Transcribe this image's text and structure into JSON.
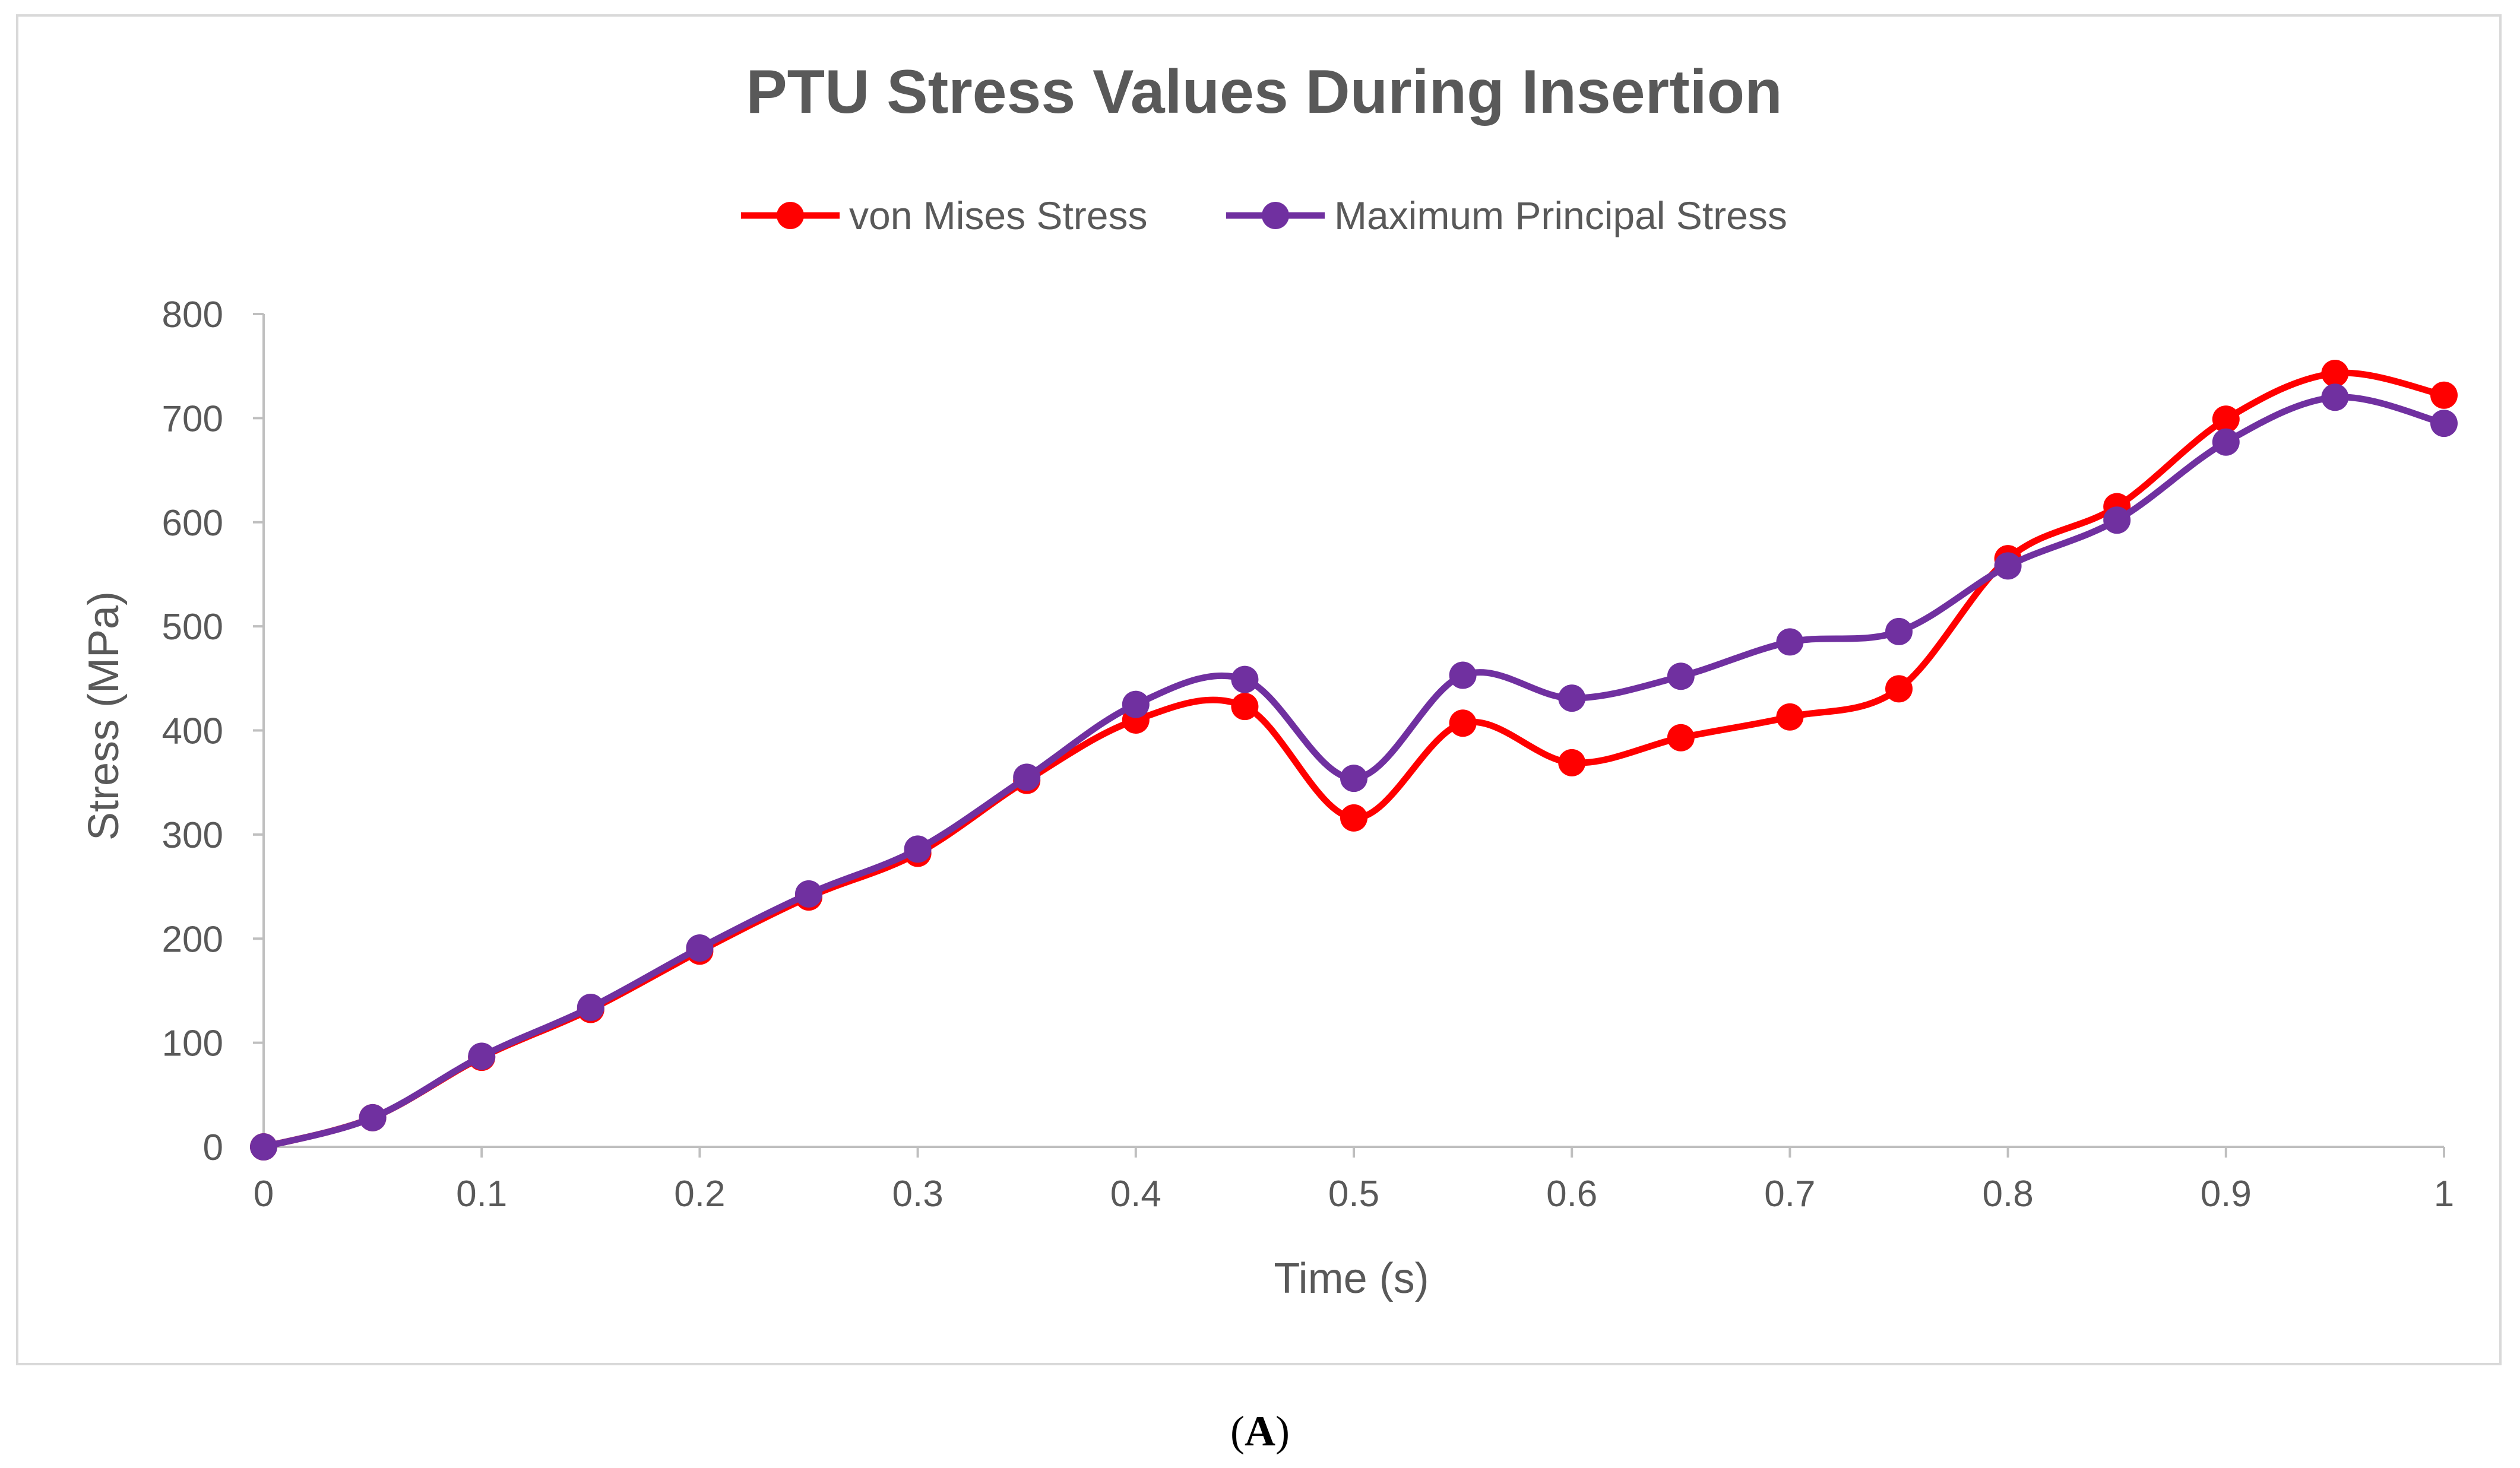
{
  "colors": {
    "von_mises": "#ff0000",
    "max_principal": "#7030a0",
    "axis": "#bfbfbf",
    "text": "#595959"
  },
  "caption": {
    "open": "(",
    "letter": "A",
    "close": ")"
  },
  "chart_data": {
    "type": "line",
    "title": "PTU Stress Values During Insertion",
    "xlabel": "Time (s)",
    "ylabel": "Stress (MPa)",
    "xlim": [
      0,
      1
    ],
    "ylim": [
      0,
      800
    ],
    "grid": false,
    "legend": "top-center",
    "x": [
      0,
      0.05,
      0.1,
      0.15,
      0.2,
      0.25,
      0.3,
      0.35,
      0.4,
      0.45,
      0.5,
      0.55,
      0.6,
      0.65,
      0.7,
      0.75,
      0.8,
      0.85,
      0.9,
      0.95,
      1
    ],
    "x_ticks": [
      "0",
      "0.1",
      "0.2",
      "0.3",
      "0.4",
      "0.5",
      "0.6",
      "0.7",
      "0.8",
      "0.9",
      "1"
    ],
    "y_ticks": [
      "0",
      "100",
      "200",
      "300",
      "400",
      "500",
      "600",
      "700",
      "800"
    ],
    "series": [
      {
        "name": "von Mises Stress",
        "color": "#ff0000",
        "values": [
          0,
          28,
          86,
          132,
          188,
          240,
          282,
          352,
          410,
          423,
          316,
          407,
          369,
          393,
          413,
          440,
          565,
          615,
          699,
          743,
          722
        ]
      },
      {
        "name": "Maximum Principal Stress",
        "color": "#7030a0",
        "values": [
          0,
          28,
          87,
          134,
          191,
          243,
          286,
          355,
          425,
          449,
          354,
          453,
          431,
          452,
          485,
          495,
          558,
          602,
          677,
          720,
          695
        ]
      }
    ]
  }
}
